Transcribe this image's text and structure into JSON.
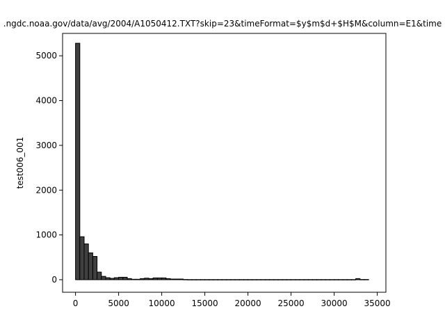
{
  "chart_data": {
    "type": "bar",
    "title": ".ngdc.noaa.gov/data/avg/2004/A1050412.TXT?skip=23&timeFormat=$y$m$d+$H$M&column=E1&time",
    "xlabel": "",
    "ylabel": "test006_001",
    "bin_width": 500,
    "bin_starts": [
      0,
      500,
      1000,
      1500,
      2000,
      2500,
      3000,
      3500,
      4000,
      4500,
      5000,
      5500,
      6000,
      6500,
      7000,
      7500,
      8000,
      8500,
      9000,
      9500,
      10000,
      10500,
      11000,
      11500,
      12000,
      12500,
      13000,
      13500,
      14000,
      14500,
      15000,
      15500,
      16000,
      16500,
      17000,
      17500,
      18000,
      18500,
      19000,
      19500,
      20000,
      20500,
      21000,
      21500,
      22000,
      22500,
      23000,
      23500,
      24000,
      24500,
      25000,
      25500,
      26000,
      26500,
      27000,
      27500,
      28000,
      28500,
      29000,
      29500,
      30000,
      30500,
      31000,
      31500,
      32000,
      32500,
      33000,
      33500
    ],
    "values": [
      5280,
      960,
      800,
      600,
      520,
      170,
      75,
      45,
      30,
      45,
      55,
      55,
      25,
      10,
      10,
      25,
      35,
      25,
      40,
      40,
      40,
      25,
      15,
      15,
      15,
      5,
      3,
      3,
      3,
      3,
      3,
      3,
      3,
      3,
      3,
      3,
      3,
      3,
      3,
      3,
      3,
      3,
      3,
      3,
      3,
      3,
      3,
      3,
      3,
      3,
      3,
      3,
      3,
      3,
      3,
      3,
      3,
      3,
      3,
      3,
      3,
      3,
      3,
      3,
      3,
      25,
      5,
      5
    ],
    "xlim": [
      -1500,
      36000
    ],
    "ylim": [
      -280,
      5500
    ],
    "xticks": [
      0,
      5000,
      10000,
      15000,
      20000,
      25000,
      30000,
      35000
    ],
    "yticks": [
      0,
      1000,
      2000,
      3000,
      4000,
      5000
    ],
    "bar_color": "#404040",
    "grid": false
  }
}
